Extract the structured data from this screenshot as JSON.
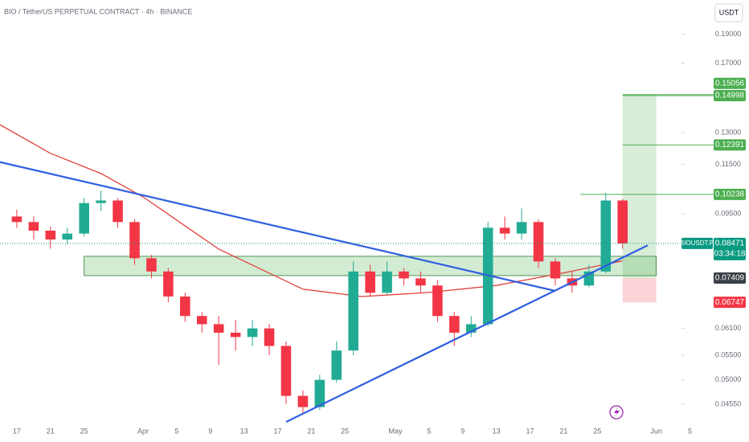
{
  "chart_data": {
    "type": "candlestick",
    "title": "BIO / TetherUS PERPETUAL CONTRACT · 4h · BINANCE",
    "currency": "USDT",
    "log_scale": true,
    "ylim": [
      0.0425,
      0.217
    ],
    "yticks": [
      {
        "value": 0.19,
        "label": "0.19000"
      },
      {
        "value": 0.17,
        "label": "0.17000"
      },
      {
        "value": 0.13,
        "label": "0.13000"
      },
      {
        "value": 0.115,
        "label": "0.11500"
      },
      {
        "value": 0.095,
        "label": "0.09500"
      },
      {
        "value": 0.061,
        "label": "0.06100"
      },
      {
        "value": 0.055,
        "label": "0.05500"
      },
      {
        "value": 0.05,
        "label": "0.05000"
      },
      {
        "value": 0.0455,
        "label": "0.04550"
      }
    ],
    "xlim": [
      "Mar 15",
      "Jun 4"
    ],
    "xticks": [
      {
        "value": "Mar 17",
        "label": "17"
      },
      {
        "value": "Mar 21",
        "label": "21"
      },
      {
        "value": "Mar 25",
        "label": "25"
      },
      {
        "value": "Apr 1",
        "label": "Apr"
      },
      {
        "value": "Apr 5",
        "label": "5"
      },
      {
        "value": "Apr 9",
        "label": "9"
      },
      {
        "value": "Apr 13",
        "label": "13"
      },
      {
        "value": "Apr 17",
        "label": "17"
      },
      {
        "value": "Apr 21",
        "label": "21"
      },
      {
        "value": "Apr 25",
        "label": "25"
      },
      {
        "value": "May 1",
        "label": "May"
      },
      {
        "value": "May 5",
        "label": "5"
      },
      {
        "value": "May 9",
        "label": "9"
      },
      {
        "value": "May 13",
        "label": "13"
      },
      {
        "value": "May 17",
        "label": "17"
      },
      {
        "value": "May 21",
        "label": "21"
      },
      {
        "value": "May 25",
        "label": "25"
      },
      {
        "value": "Jun 1",
        "label": "Jun"
      },
      {
        "value": "Jun 5",
        "label": "5"
      }
    ],
    "up_color": "#22ab94",
    "down_color": "#f23645",
    "x": [
      "Mar 17",
      "Mar 19",
      "Mar 21",
      "Mar 23",
      "Mar 25",
      "Mar 27",
      "Mar 29",
      "Mar 31",
      "Apr 2",
      "Apr 4",
      "Apr 6",
      "Apr 8",
      "Apr 10",
      "Apr 12",
      "Apr 14",
      "Apr 16",
      "Apr 18",
      "Apr 20",
      "Apr 22",
      "Apr 24",
      "Apr 26",
      "Apr 28",
      "Apr 30",
      "May 2",
      "May 4",
      "May 6",
      "May 8",
      "May 10",
      "May 12",
      "May 14",
      "May 16",
      "May 18",
      "May 20",
      "May 22",
      "May 24",
      "May 26",
      "May 28"
    ],
    "open": [
      0.094,
      0.092,
      0.089,
      0.086,
      0.088,
      0.099,
      0.1,
      0.092,
      0.08,
      0.076,
      0.069,
      0.064,
      0.062,
      0.06,
      0.059,
      0.061,
      0.057,
      0.047,
      0.045,
      0.05,
      0.056,
      0.076,
      0.07,
      0.076,
      0.074,
      0.072,
      0.064,
      0.06,
      0.062,
      0.09,
      0.088,
      0.092,
      0.079,
      0.074,
      0.072,
      0.076,
      0.1
    ],
    "high": [
      0.0965,
      0.094,
      0.0905,
      0.09,
      0.101,
      0.104,
      0.101,
      0.093,
      0.081,
      0.077,
      0.07,
      0.065,
      0.064,
      0.063,
      0.063,
      0.062,
      0.058,
      0.048,
      0.051,
      0.058,
      0.079,
      0.078,
      0.079,
      0.077,
      0.076,
      0.0735,
      0.065,
      0.064,
      0.092,
      0.094,
      0.097,
      0.093,
      0.08,
      0.076,
      0.078,
      0.103,
      0.1005
    ],
    "low": [
      0.09,
      0.086,
      0.083,
      0.0845,
      0.087,
      0.096,
      0.09,
      0.078,
      0.074,
      0.0675,
      0.0625,
      0.06,
      0.053,
      0.056,
      0.057,
      0.055,
      0.0455,
      0.044,
      0.0445,
      0.0495,
      0.055,
      0.069,
      0.0695,
      0.072,
      0.07,
      0.0625,
      0.057,
      0.059,
      0.0615,
      0.086,
      0.086,
      0.077,
      0.072,
      0.07,
      0.0715,
      0.0755,
      0.083
    ],
    "close": [
      0.092,
      0.089,
      0.086,
      0.088,
      0.099,
      0.1,
      0.092,
      0.08,
      0.076,
      0.069,
      0.064,
      0.062,
      0.06,
      0.059,
      0.061,
      0.057,
      0.047,
      0.045,
      0.05,
      0.056,
      0.076,
      0.07,
      0.076,
      0.074,
      0.072,
      0.064,
      0.06,
      0.062,
      0.09,
      0.088,
      0.092,
      0.079,
      0.074,
      0.072,
      0.076,
      0.1,
      0.0847
    ],
    "moving_average": {
      "color": "#e0403a",
      "x": [
        "Mar 15",
        "Mar 21",
        "Mar 27",
        "Apr 1",
        "Apr 10",
        "Apr 20",
        "Apr 27",
        "May 5",
        "May 13",
        "May 21",
        "May 28"
      ],
      "values": [
        0.134,
        0.12,
        0.111,
        0.1014,
        0.0829,
        0.071,
        0.069,
        0.0701,
        0.072,
        0.0756,
        0.0792
      ]
    },
    "trendlines": [
      {
        "color": "#2f5fe0",
        "x": [
          "Mar 15",
          "May 20"
        ],
        "values": [
          0.116,
          0.0705
        ]
      },
      {
        "color": "#2f5fe0",
        "x": [
          "Apr 18",
          "May 31"
        ],
        "values": [
          0.0425,
          0.0841
        ]
      }
    ],
    "zone": {
      "color": "#4caf50",
      "x": [
        "Mar 25",
        "Jun 1"
      ],
      "values": [
        0.0748,
        0.0806
      ]
    },
    "position": {
      "x": [
        "May 28",
        "Jun 1"
      ],
      "entry": 0.07409,
      "stop": 0.06747,
      "targets": [
        0.10238,
        0.12391,
        0.14998,
        0.15056
      ],
      "target_start": [
        "May 23",
        "May 28",
        "May 28",
        "May 28"
      ],
      "profit_color": "#4caf50",
      "loss_color": "#f23645",
      "entry_color": "#3a3e45"
    },
    "last": {
      "name": "BIOUSDT.P",
      "value": 0.08471,
      "countdown": "03:34:18",
      "color": "#089981"
    }
  }
}
